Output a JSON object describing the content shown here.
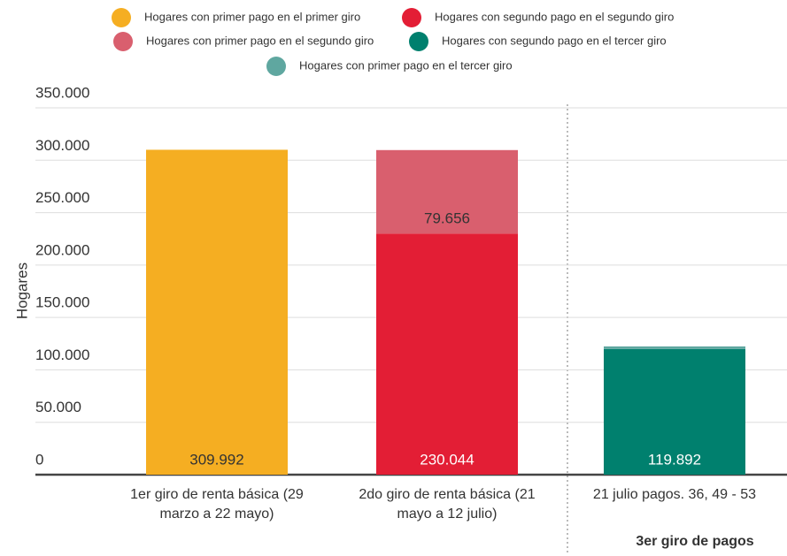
{
  "chart_data": {
    "type": "stacked_bar",
    "y_label": "Hogares",
    "annotation": "3er giro de pagos",
    "categories": [
      "1er giro de renta básica (29 marzo a 22 mayo)",
      "2do giro de renta básica (21 mayo a 12 julio)",
      "21 julio pagos. 36, 49 - 53"
    ],
    "series": [
      {
        "name": "Hogares con primer pago en el primer giro",
        "color": "#f5ae22",
        "values": [
          309992,
          null,
          null
        ],
        "value_labels": [
          "309.992",
          null,
          null
        ]
      },
      {
        "name": "Hogares con segundo pago en el segundo giro",
        "color": "#e31e35",
        "values": [
          null,
          230044,
          null
        ],
        "value_labels": [
          null,
          "230.044",
          null
        ]
      },
      {
        "name": "Hogares con primer pago en el segundo giro",
        "color": "#d95f6e",
        "values": [
          null,
          79656,
          null
        ],
        "value_labels": [
          null,
          "79.656",
          null
        ]
      },
      {
        "name": "Hogares con segundo pago en el tercer giro",
        "color": "#00806e",
        "values": [
          null,
          null,
          119892
        ],
        "value_labels": [
          null,
          null,
          "119.892"
        ]
      },
      {
        "name": "Hogares con primer pago en el tercer giro",
        "color": "#5fa7a0",
        "values": [
          null,
          null,
          2500
        ],
        "value_labels": [
          null,
          null,
          null
        ]
      }
    ],
    "ylim": [
      0,
      350000
    ],
    "yticks": [
      0,
      {
        "value": 50000,
        "label": "50.000"
      },
      {
        "value": 100000,
        "label": "100.000"
      },
      {
        "value": 150000,
        "label": "150.000"
      },
      {
        "value": 200000,
        "label": "200.000"
      },
      {
        "value": 250000,
        "label": "250.000"
      },
      {
        "value": 300000,
        "label": "300.000"
      },
      {
        "value": 350000,
        "label": "350.000"
      }
    ],
    "grid": true
  }
}
